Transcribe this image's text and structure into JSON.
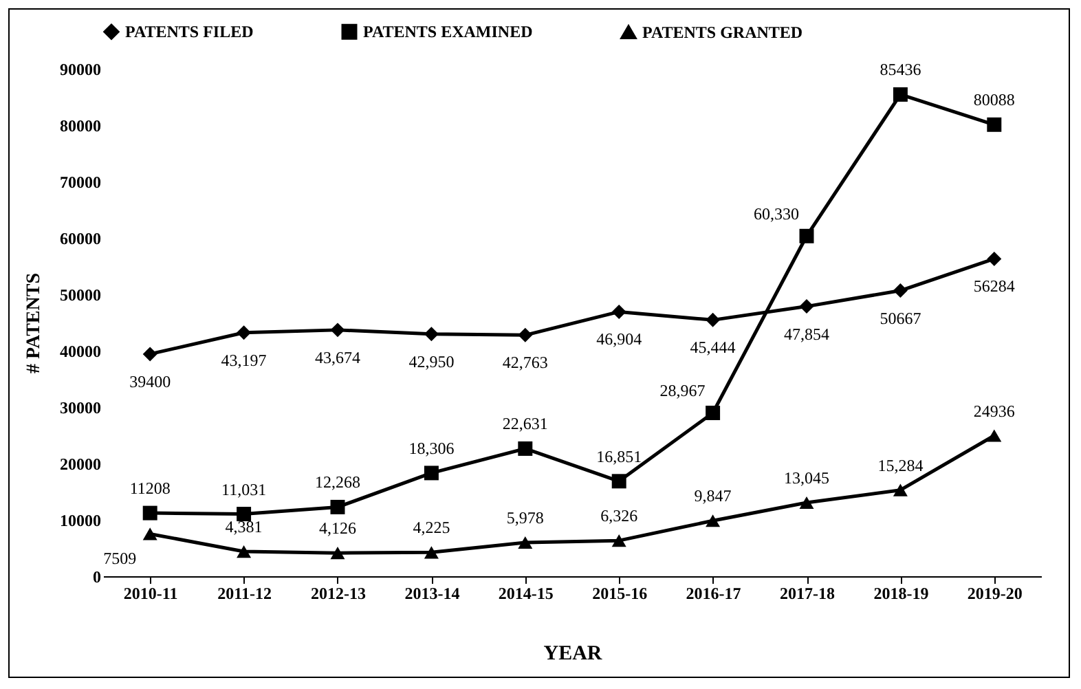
{
  "chart_data": {
    "type": "line",
    "xlabel": "YEAR",
    "ylabel": "# PATENTS",
    "categories": [
      "2010-11",
      "2011-12",
      "2012-13",
      "2013-14",
      "2014-15",
      "2015-16",
      "2016-17",
      "2017-18",
      "2018-19",
      "2019-20"
    ],
    "series": [
      {
        "name": "PATENTS FILED",
        "color": "#000000",
        "marker": "diamond",
        "values": [
          39400,
          43197,
          43674,
          42950,
          42763,
          46904,
          45444,
          47854,
          50667,
          56284
        ],
        "value_labels": [
          "39400",
          "43,197",
          "43,674",
          "42,950",
          "42,763",
          "46,904",
          "45,444",
          "47,854",
          "50667",
          "56284"
        ]
      },
      {
        "name": "PATENTS EXAMINED",
        "color": "#000000",
        "marker": "square",
        "values": [
          11208,
          11031,
          12268,
          18306,
          22631,
          16851,
          28967,
          60330,
          85436,
          80088
        ],
        "value_labels": [
          "11208",
          "11,031",
          "12,268",
          "18,306",
          "22,631",
          "16,851",
          "28,967",
          "60,330",
          "85436",
          "80088"
        ]
      },
      {
        "name": "PATENTS GRANTED",
        "color": "#000000",
        "marker": "triangle",
        "values": [
          7509,
          4381,
          4126,
          4225,
          5978,
          6326,
          9847,
          13045,
          15284,
          24936
        ],
        "value_labels": [
          "7509",
          "4,381",
          "4,126",
          "4,225",
          "5,978",
          "6,326",
          "9,847",
          "13,045",
          "15,284",
          "24936"
        ]
      }
    ],
    "ylim": [
      0,
      90000
    ],
    "yticks": [
      0,
      10000,
      20000,
      30000,
      40000,
      50000,
      60000,
      70000,
      80000,
      90000
    ],
    "grid": false,
    "legend": "top"
  }
}
